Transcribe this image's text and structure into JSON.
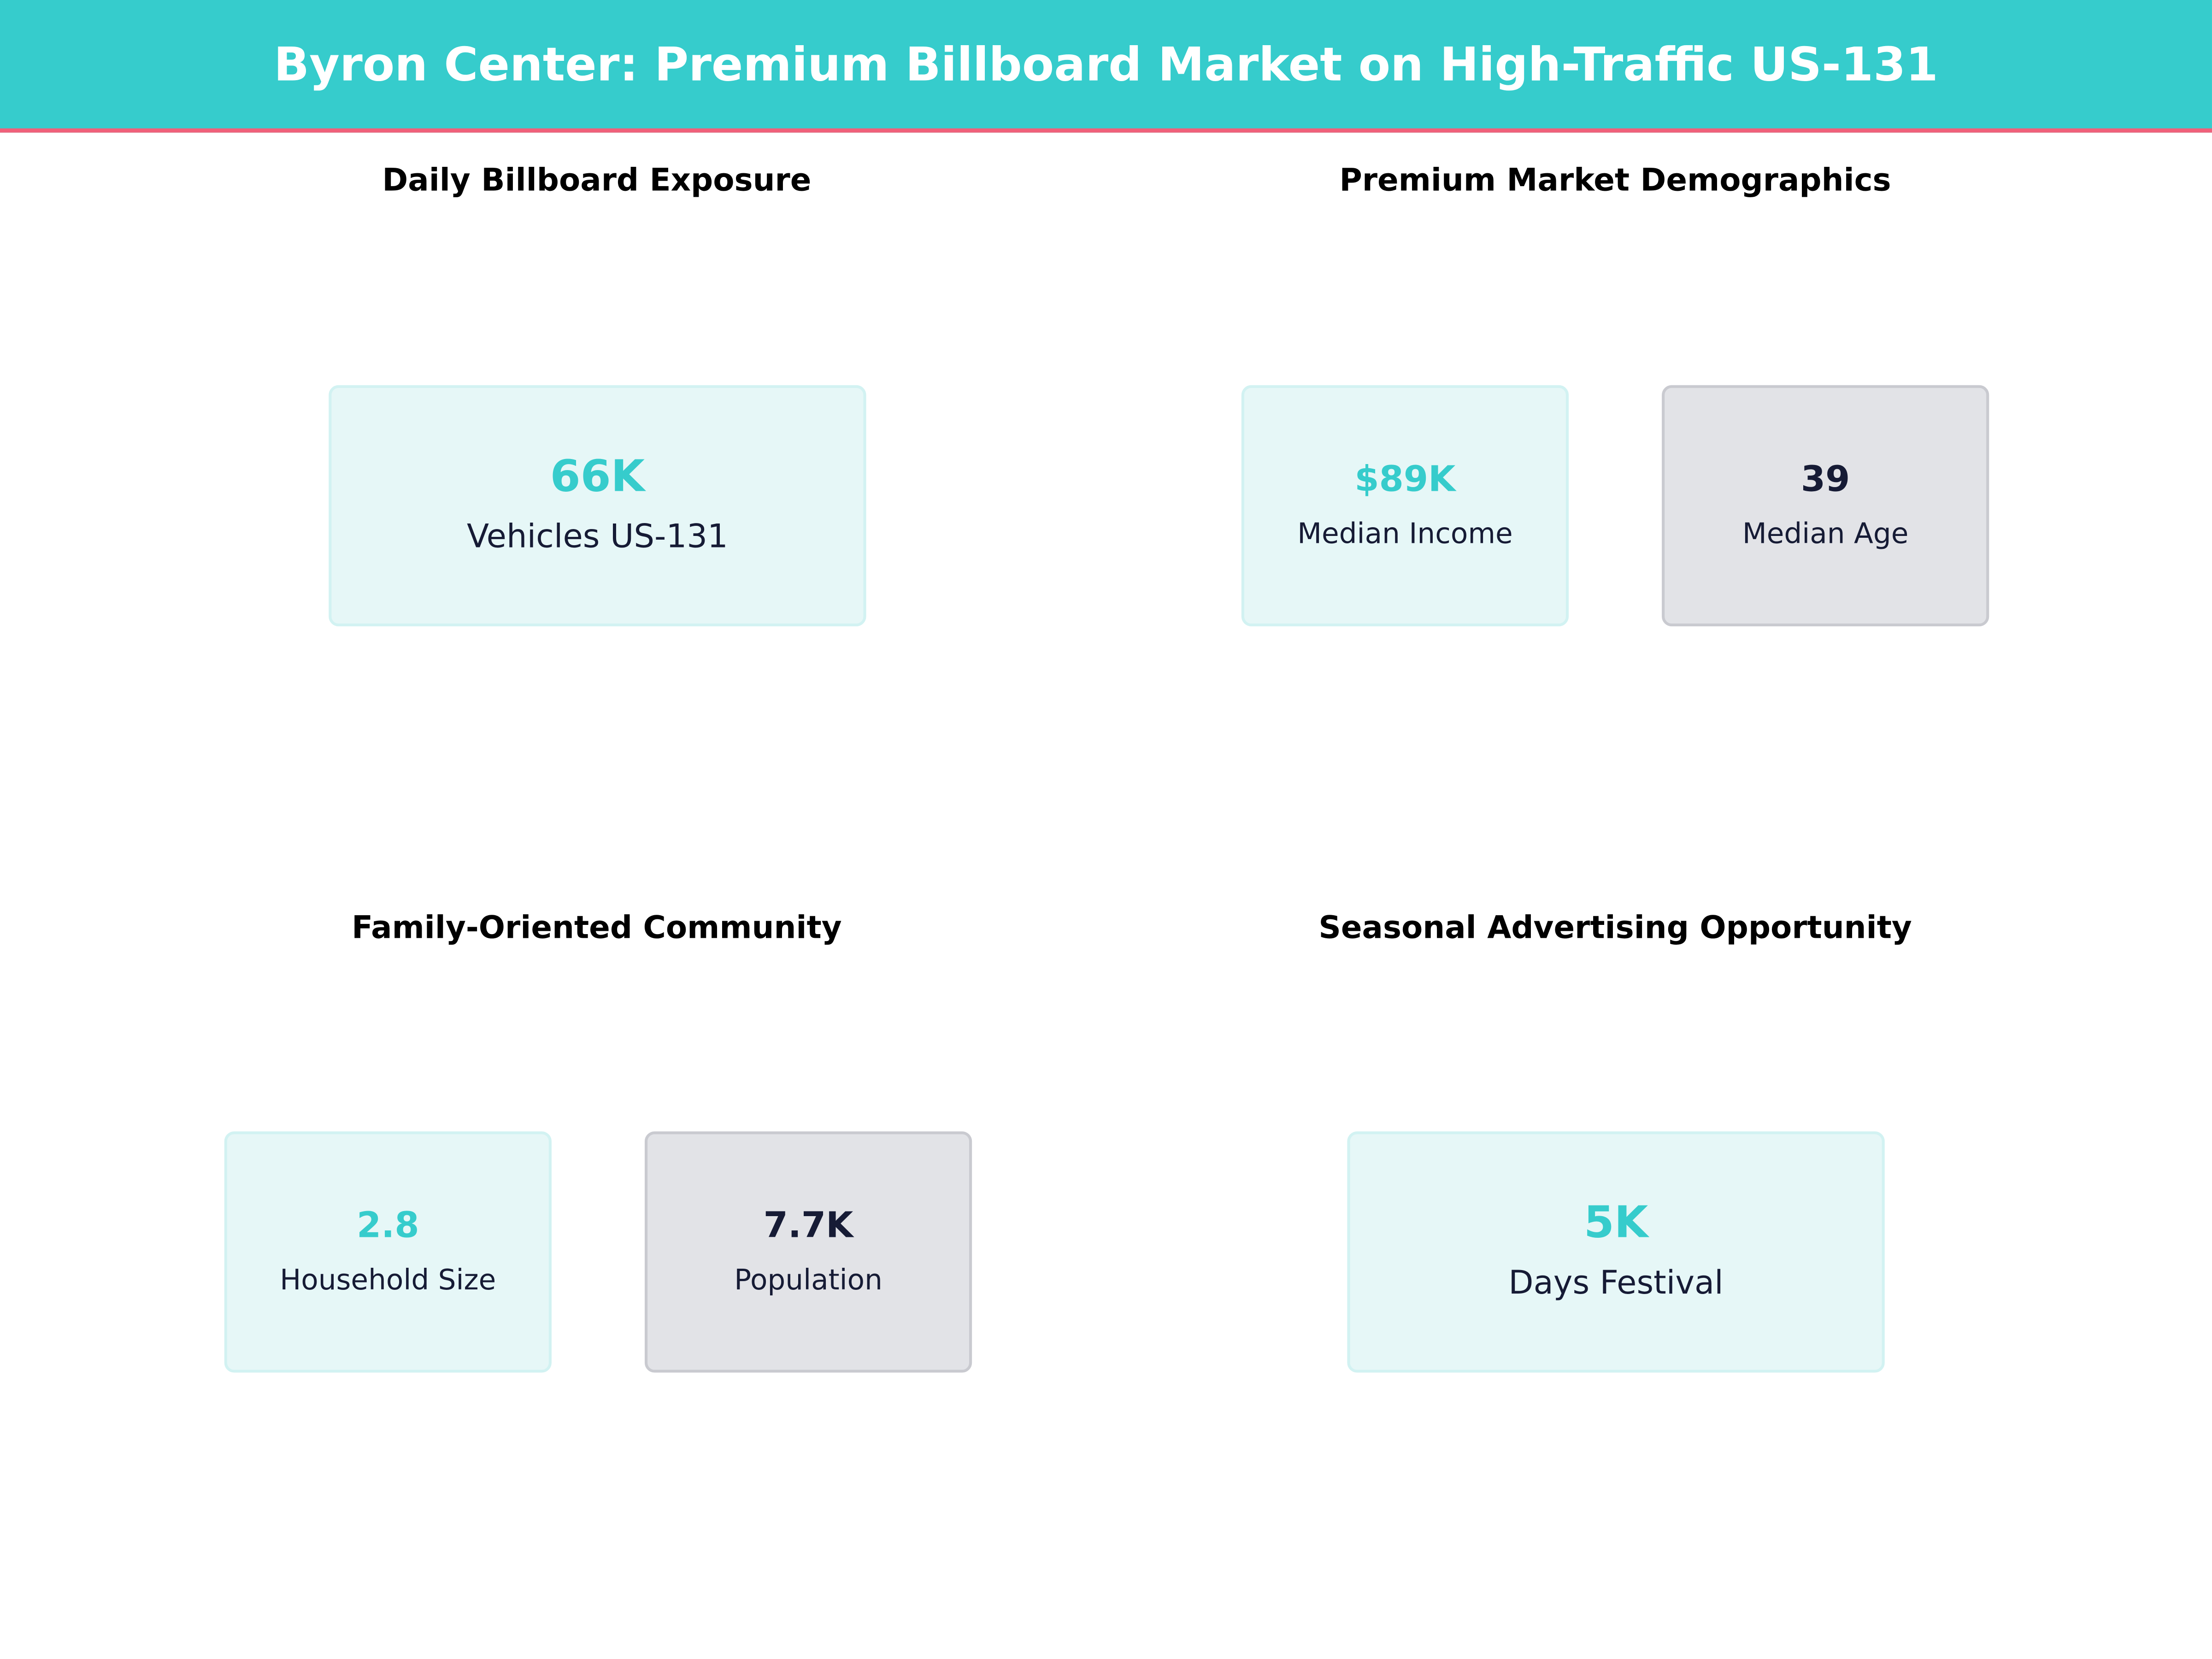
{
  "title": "Byron Center: Premium Billboard Market on High-Traffic US-131",
  "colors": {
    "accent": "#36CCCC",
    "stripe": "#F0607A",
    "dark": "#161B35",
    "card_teal": "#E6F7F7",
    "card_gray": "#E2E3E7"
  },
  "sections": [
    {
      "title": "Daily Billboard Exposure",
      "cards": [
        {
          "value": "66K",
          "label": "Vehicles US-131",
          "style": "teal"
        }
      ]
    },
    {
      "title": "Premium Market Demographics",
      "cards": [
        {
          "value": "$89K",
          "label": "Median Income",
          "style": "teal"
        },
        {
          "value": "39",
          "label": "Median Age",
          "style": "gray"
        }
      ]
    },
    {
      "title": "Family-Oriented Community",
      "cards": [
        {
          "value": "2.8",
          "label": "Household Size",
          "style": "teal"
        },
        {
          "value": "7.7K",
          "label": "Population",
          "style": "gray"
        }
      ]
    },
    {
      "title": "Seasonal Advertising Opportunity",
      "cards": [
        {
          "value": "5K",
          "label": "Days Festival",
          "style": "teal"
        }
      ]
    }
  ]
}
